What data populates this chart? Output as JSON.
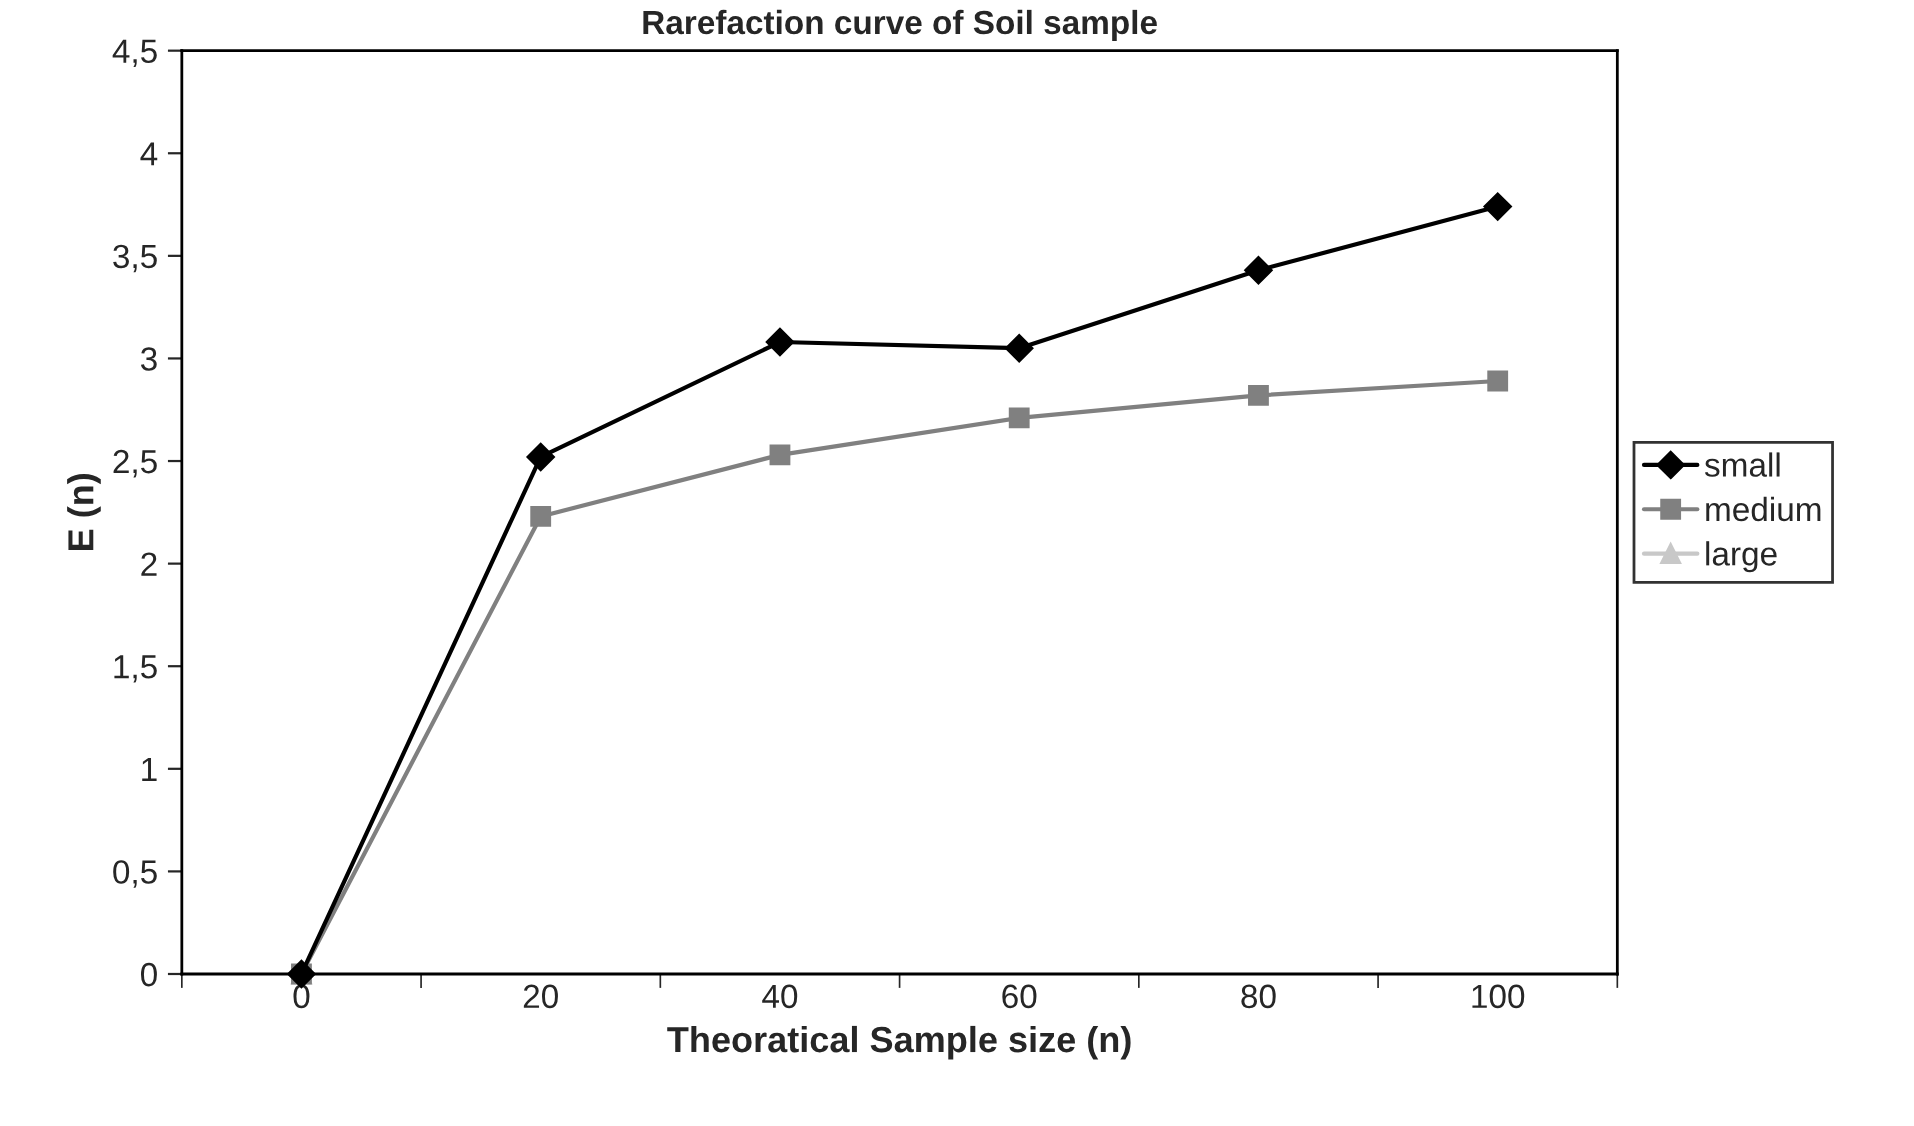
{
  "chart_data": {
    "type": "line",
    "title": "Rarefaction curve of Soil sample",
    "xlabel": "Theoratical Sample size (n)",
    "ylabel": "E (n)",
    "categories": [
      "0",
      "20",
      "40",
      "60",
      "80",
      "100"
    ],
    "series": [
      {
        "name": "small",
        "color": "#000000",
        "marker": "diamond",
        "values": [
          0,
          2.52,
          3.08,
          3.05,
          3.43,
          3.74
        ]
      },
      {
        "name": "medium",
        "color": "#808080",
        "marker": "square",
        "values": [
          0,
          2.23,
          2.53,
          2.71,
          2.82,
          2.89
        ]
      },
      {
        "name": "large",
        "color": "#c8c8c8",
        "marker": "triangle",
        "values": [
          0,
          null,
          null,
          null,
          null,
          null
        ]
      }
    ],
    "ylim": [
      0,
      4.5
    ],
    "yticks": [
      0,
      {
        "value": 0.5,
        "label": "0,5"
      },
      1,
      {
        "value": 1.5,
        "label": "1,5"
      },
      2,
      {
        "value": 2.5,
        "label": "2,5"
      },
      3,
      {
        "value": 3.5,
        "label": "3,5"
      },
      4,
      {
        "value": 4.5,
        "label": "4,5"
      }
    ],
    "grid": false,
    "legend": "right",
    "line_style": "solid"
  }
}
